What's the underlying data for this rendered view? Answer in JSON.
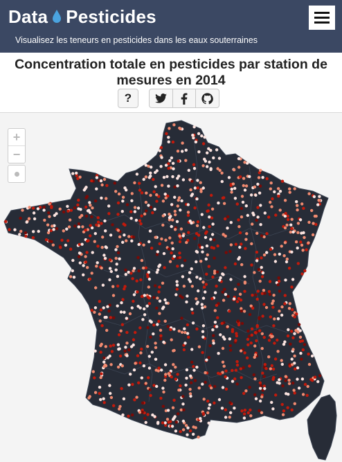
{
  "header": {
    "brand_left": "Data",
    "brand_right": "Pesticides",
    "tagline": "Visualisez les teneurs en pesticides dans les eaux souterraines",
    "menu_icon": "hamburger-icon"
  },
  "page": {
    "title": "Concentration totale en pesticides par station de mesures en 2014",
    "help_label": "?"
  },
  "share": {
    "icons": [
      "twitter-icon",
      "facebook-icon",
      "github-icon"
    ]
  },
  "map": {
    "zoom_in": "+",
    "zoom_out": "−",
    "colors": {
      "land": "#272c37",
      "borders": "#3d4554",
      "low": "#fbe3df",
      "mid": "#f08a70",
      "high": "#c21a0c",
      "very_high": "#7a0a06"
    }
  }
}
